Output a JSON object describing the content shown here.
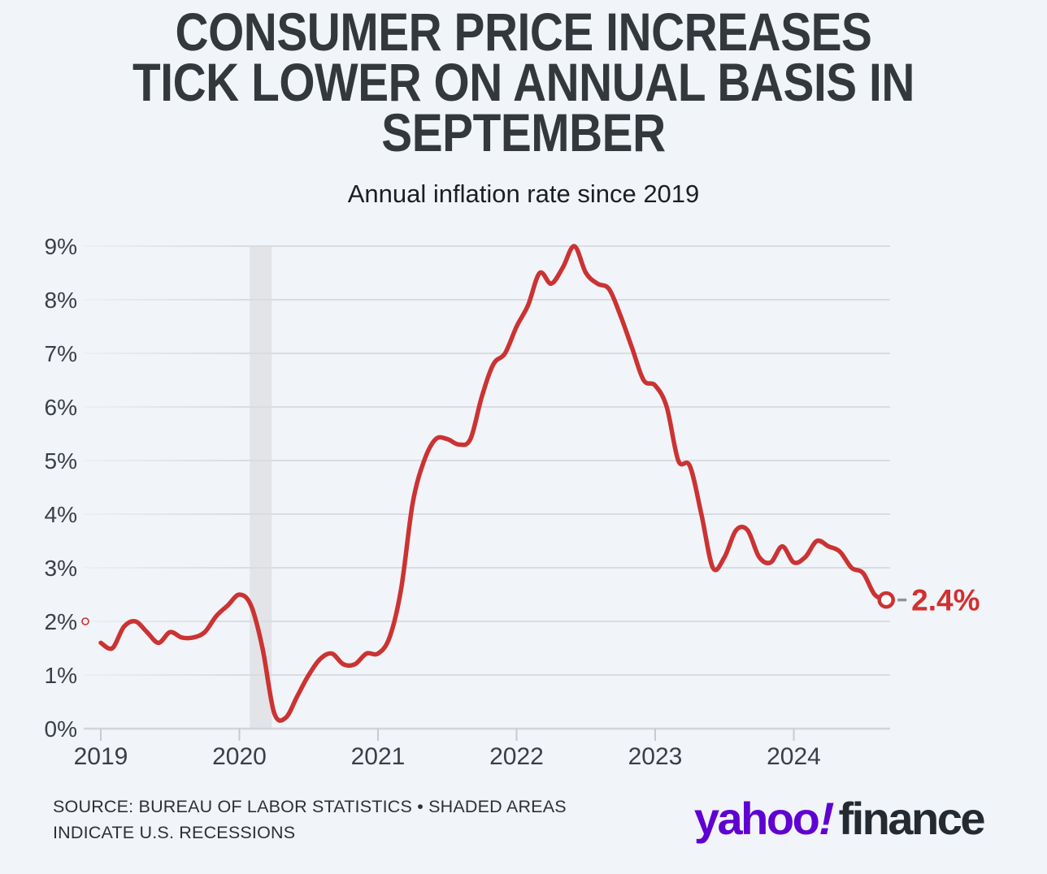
{
  "page": {
    "background": "#f1f4f8"
  },
  "header": {
    "title_lines": [
      "CONSUMER PRICE INCREASES",
      "TICK LOWER ON ANNUAL BASIS IN",
      "SEPTEMBER"
    ],
    "subtitle": "Annual inflation rate since 2019"
  },
  "chart_data": {
    "type": "line",
    "title": "Annual inflation rate since 2019",
    "xlabel": "",
    "ylabel": "",
    "x_start_month": "2019-01",
    "x_end_month": "2024-09",
    "x_tick_labels": [
      "2019",
      "2020",
      "2021",
      "2022",
      "2023",
      "2024"
    ],
    "y_tick_labels": [
      "0%",
      "1%",
      "2%",
      "3%",
      "4%",
      "5%",
      "6%",
      "7%",
      "8%",
      "9%"
    ],
    "ylim": [
      0,
      9
    ],
    "grid": true,
    "series": [
      {
        "name": "Annual inflation rate (%, year over year)",
        "monthly_values": [
          1.6,
          1.5,
          1.9,
          2.0,
          1.8,
          1.6,
          1.8,
          1.7,
          1.7,
          1.8,
          2.1,
          2.3,
          2.5,
          2.3,
          1.5,
          0.3,
          0.2,
          0.6,
          1.0,
          1.3,
          1.4,
          1.2,
          1.2,
          1.4,
          1.4,
          1.7,
          2.6,
          4.2,
          5.0,
          5.4,
          5.4,
          5.3,
          5.4,
          6.2,
          6.8,
          7.0,
          7.5,
          7.9,
          8.5,
          8.3,
          8.6,
          9.0,
          8.5,
          8.3,
          8.2,
          7.7,
          7.1,
          6.5,
          6.4,
          6.0,
          5.0,
          4.9,
          4.0,
          3.0,
          3.2,
          3.7,
          3.7,
          3.2,
          3.1,
          3.4,
          3.1,
          3.2,
          3.5,
          3.4,
          3.3,
          3.0,
          2.9,
          2.5,
          2.4
        ]
      }
    ],
    "line_color": "#cb3333",
    "end_annotation": {
      "label": "2.4%",
      "value": 2.4,
      "color": "#d22f2f"
    },
    "target_marker": {
      "value": 2.0,
      "color": "#cb3333"
    },
    "recession_band": {
      "from_month_index": 12.9,
      "to_month_index": 14.8,
      "color": "#e2e4e7"
    },
    "grid_color": "#d9dce0",
    "axis_line_color": "#d2d6da",
    "tick_color": "#c7cbcf",
    "axis_text_color": "#3a3f45",
    "dash_color": "#8f959b",
    "legend": "none"
  },
  "footer": {
    "source_lines": [
      "SOURCE: BUREAU OF LABOR STATISTICS • SHADED AREAS",
      "INDICATE U.S. RECESSIONS"
    ],
    "logo": {
      "yahoo": "yahoo",
      "bang": "!",
      "finance": "finance",
      "purple": "#5f01d1",
      "dark": "#232a31"
    }
  }
}
